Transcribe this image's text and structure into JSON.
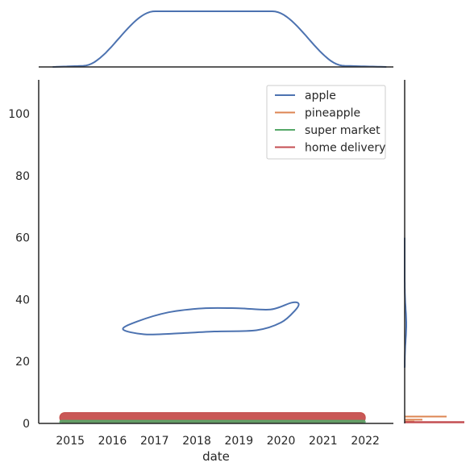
{
  "chart_data": {
    "type": "line",
    "xlabel": "date",
    "ylabel": "",
    "x_ticks": [
      "2015",
      "2016",
      "2017",
      "2018",
      "2019",
      "2020",
      "2021",
      "2022"
    ],
    "y_ticks": [
      "0",
      "20",
      "40",
      "60",
      "80",
      "100"
    ],
    "ylim": [
      0,
      111
    ],
    "xlim": [
      "2014-04",
      "2022-09"
    ],
    "grid": false,
    "legend_position": "top-right",
    "legend": [
      "apple",
      "pineapple",
      "super market",
      "home delivery"
    ],
    "series": [
      {
        "name": "apple",
        "color": "#4c72b0",
        "kde_contour": [
          {
            "x": "2016-10",
            "y": 28.8
          },
          {
            "x": "2017-06",
            "y": 29.0
          },
          {
            "x": "2018-06",
            "y": 29.7
          },
          {
            "x": "2019-06",
            "y": 30.1
          },
          {
            "x": "2020-01",
            "y": 32.6
          },
          {
            "x": "2020-05",
            "y": 36.5
          },
          {
            "x": "2020-06",
            "y": 38.7
          },
          {
            "x": "2020-04",
            "y": 39.0
          },
          {
            "x": "2019-10",
            "y": 36.8
          },
          {
            "x": "2019-01",
            "y": 37.2
          },
          {
            "x": "2018-03",
            "y": 37.2
          },
          {
            "x": "2017-05",
            "y": 35.9
          },
          {
            "x": "2016-08",
            "y": 32.9
          },
          {
            "x": "2016-04",
            "y": 30.4
          }
        ]
      },
      {
        "name": "pineapple",
        "color": "#dd8452",
        "band_y_range": [
          0.5,
          3.5
        ],
        "x_range": [
          "2014-10",
          "2022-01"
        ]
      },
      {
        "name": "super market",
        "color": "#55a868",
        "band_y_range": [
          0,
          1
        ],
        "x_range": [
          "2014-10",
          "2022-01"
        ]
      },
      {
        "name": "home delivery",
        "color": "#c44e52",
        "band_y_range": [
          0,
          3.5
        ],
        "x_range": [
          "2014-10",
          "2022-01"
        ]
      }
    ],
    "top_marginal": {
      "type": "kde",
      "color": "#4c72b0"
    },
    "right_marginal": {
      "type": "kde",
      "colors": [
        "#4c72b0",
        "#dd8452",
        "#c44e52"
      ]
    }
  }
}
